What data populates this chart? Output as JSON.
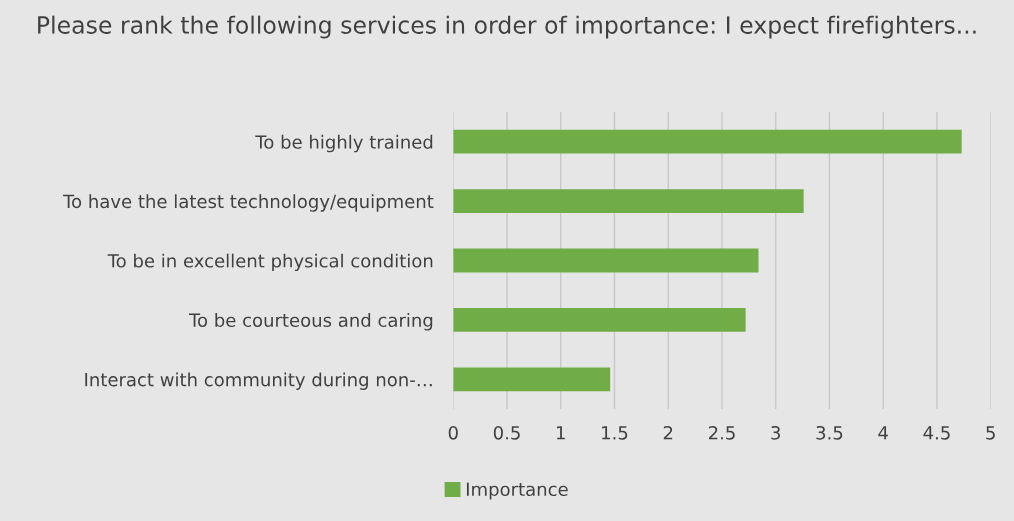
{
  "chart_data": {
    "type": "bar",
    "orientation": "horizontal",
    "title": "Please rank the following services in order of importance: I expect firefighters...",
    "categories": [
      "To be highly trained",
      "To have the latest technology/equipment",
      "To be in excellent physical condition",
      "To be courteous and caring",
      "Interact with community during non-…"
    ],
    "series": [
      {
        "name": "Importance",
        "color": "#70ad47",
        "values": [
          4.73,
          3.26,
          2.84,
          2.72,
          1.46
        ]
      }
    ],
    "xlim": [
      0,
      5
    ],
    "xticks": [
      0,
      {
        "value": 0.5,
        "label": "0.5"
      },
      1,
      {
        "value": 1.5,
        "label": "1.5"
      },
      2,
      {
        "value": 2.5,
        "label": "2.5"
      },
      3,
      {
        "value": 3.5,
        "label": "3.5"
      },
      4,
      {
        "value": 4.5,
        "label": "4.5"
      },
      5
    ],
    "grid": "x",
    "legend": "bottom"
  }
}
